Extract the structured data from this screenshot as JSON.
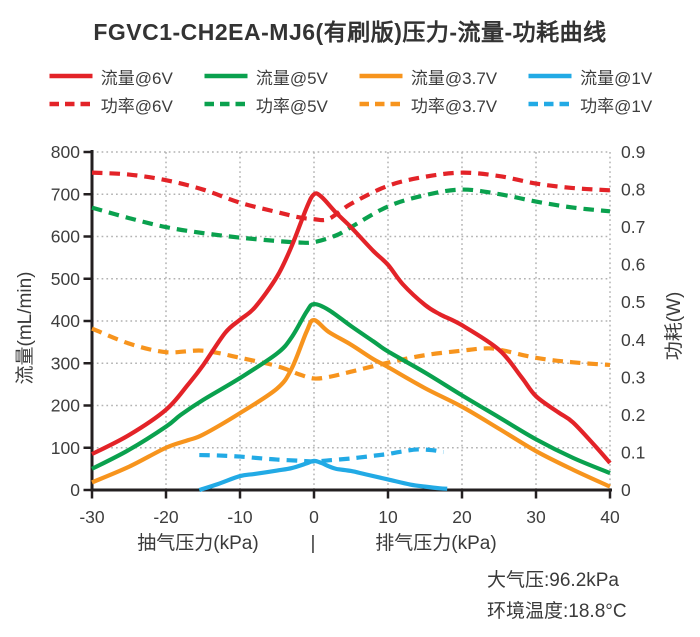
{
  "chart_data": {
    "type": "line",
    "title": "FGVC1-CH2EA-MJ6(有刷版)压力-流量-功耗曲线",
    "x_axis": {
      "label_left": "抽气压力(kPa)",
      "separator": "|",
      "label_right": "排气压力(kPa)",
      "min": -30,
      "max": 40,
      "ticks": [
        -30,
        -20,
        -10,
        0,
        10,
        20,
        30,
        40
      ]
    },
    "y_left": {
      "label": "流量(mL/min)",
      "min": 0,
      "max": 800,
      "ticks": [
        0,
        100,
        200,
        300,
        400,
        500,
        600,
        700,
        800
      ]
    },
    "y_right": {
      "label": "功耗(W)",
      "min": 0,
      "max": 0.9,
      "ticks": [
        0,
        0.1,
        0.2,
        0.3,
        0.4,
        0.5,
        0.6,
        0.7,
        0.8,
        0.9
      ]
    },
    "grid": "dotted",
    "legend_position": "top",
    "colors": {
      "v6": "#e32328",
      "v5": "#0aa14e",
      "v37": "#f7941d",
      "v1": "#22aae5"
    },
    "series": [
      {
        "key": "flow-6v",
        "name": "流量@6V",
        "axis": "left",
        "style": "solid",
        "color": "#e32328",
        "points": [
          [
            -30,
            85
          ],
          [
            -25,
            130
          ],
          [
            -20,
            190
          ],
          [
            -17,
            250
          ],
          [
            -15,
            295
          ],
          [
            -12,
            372
          ],
          [
            -10,
            403
          ],
          [
            -8,
            432
          ],
          [
            -5,
            505
          ],
          [
            -3,
            578
          ],
          [
            -1,
            668
          ],
          [
            0,
            700
          ],
          [
            1,
            694
          ],
          [
            3,
            656
          ],
          [
            5,
            622
          ],
          [
            8,
            566
          ],
          [
            10,
            533
          ],
          [
            12,
            487
          ],
          [
            15,
            438
          ],
          [
            17,
            416
          ],
          [
            20,
            390
          ],
          [
            25,
            332
          ],
          [
            28,
            268
          ],
          [
            30,
            222
          ],
          [
            33,
            184
          ],
          [
            35,
            160
          ],
          [
            38,
            104
          ],
          [
            40,
            64
          ]
        ]
      },
      {
        "key": "flow-5v",
        "name": "流量@5V",
        "axis": "left",
        "style": "solid",
        "color": "#0aa14e",
        "points": [
          [
            -30,
            50
          ],
          [
            -25,
            95
          ],
          [
            -20,
            150
          ],
          [
            -18,
            178
          ],
          [
            -15,
            213
          ],
          [
            -10,
            265
          ],
          [
            -5,
            323
          ],
          [
            -3,
            362
          ],
          [
            -1,
            422
          ],
          [
            0,
            440
          ],
          [
            2,
            426
          ],
          [
            5,
            388
          ],
          [
            8,
            352
          ],
          [
            10,
            328
          ],
          [
            15,
            278
          ],
          [
            20,
            224
          ],
          [
            25,
            172
          ],
          [
            30,
            120
          ],
          [
            35,
            76
          ],
          [
            40,
            40
          ]
        ]
      },
      {
        "key": "flow-3.7v",
        "name": "流量@3.7V",
        "axis": "left",
        "style": "solid",
        "color": "#f7941d",
        "points": [
          [
            -30,
            18
          ],
          [
            -25,
            55
          ],
          [
            -20,
            100
          ],
          [
            -17,
            118
          ],
          [
            -15,
            131
          ],
          [
            -10,
            182
          ],
          [
            -5,
            240
          ],
          [
            -3,
            288
          ],
          [
            -1,
            375
          ],
          [
            0,
            402
          ],
          [
            2,
            374
          ],
          [
            5,
            344
          ],
          [
            8,
            310
          ],
          [
            10,
            291
          ],
          [
            15,
            241
          ],
          [
            20,
            197
          ],
          [
            25,
            145
          ],
          [
            30,
            92
          ],
          [
            35,
            48
          ],
          [
            40,
            8
          ]
        ]
      },
      {
        "key": "flow-1v",
        "name": "流量@1V",
        "axis": "left",
        "style": "solid",
        "color": "#22aae5",
        "points": [
          [
            -15.5,
            0
          ],
          [
            -13,
            14
          ],
          [
            -10,
            33
          ],
          [
            -8,
            38
          ],
          [
            -5,
            46
          ],
          [
            -3,
            52
          ],
          [
            -1,
            63
          ],
          [
            0,
            69
          ],
          [
            1,
            64
          ],
          [
            2,
            56
          ],
          [
            3,
            50
          ],
          [
            5,
            45
          ],
          [
            7,
            37
          ],
          [
            10,
            25
          ],
          [
            13,
            13
          ],
          [
            15,
            8
          ],
          [
            17,
            4
          ],
          [
            18,
            3
          ]
        ]
      },
      {
        "key": "power-6v",
        "name": "功率@6V",
        "axis": "right",
        "style": "dashed",
        "color": "#e32328",
        "points": [
          [
            -30,
            0.845
          ],
          [
            -25,
            0.84
          ],
          [
            -20,
            0.825
          ],
          [
            -15,
            0.8
          ],
          [
            -10,
            0.765
          ],
          [
            -5,
            0.74
          ],
          [
            -2,
            0.726
          ],
          [
            0,
            0.721
          ],
          [
            2,
            0.722
          ],
          [
            5,
            0.762
          ],
          [
            10,
            0.81
          ],
          [
            15,
            0.834
          ],
          [
            20,
            0.845
          ],
          [
            25,
            0.836
          ],
          [
            30,
            0.816
          ],
          [
            35,
            0.804
          ],
          [
            40,
            0.798
          ]
        ]
      },
      {
        "key": "power-5v",
        "name": "功率@5V",
        "axis": "right",
        "style": "dashed",
        "color": "#0aa14e",
        "points": [
          [
            -30,
            0.752
          ],
          [
            -25,
            0.724
          ],
          [
            -20,
            0.7
          ],
          [
            -15,
            0.684
          ],
          [
            -10,
            0.672
          ],
          [
            -5,
            0.663
          ],
          [
            -2,
            0.659
          ],
          [
            0,
            0.66
          ],
          [
            3,
            0.678
          ],
          [
            5,
            0.7
          ],
          [
            10,
            0.755
          ],
          [
            15,
            0.785
          ],
          [
            20,
            0.8
          ],
          [
            25,
            0.788
          ],
          [
            30,
            0.768
          ],
          [
            35,
            0.752
          ],
          [
            40,
            0.742
          ]
        ]
      },
      {
        "key": "power-3.7v",
        "name": "功率@3.7V",
        "axis": "right",
        "style": "dashed",
        "color": "#f7941d",
        "points": [
          [
            -30,
            0.43
          ],
          [
            -25,
            0.39
          ],
          [
            -20,
            0.367
          ],
          [
            -15,
            0.371
          ],
          [
            -10,
            0.352
          ],
          [
            -5,
            0.33
          ],
          [
            -2,
            0.308
          ],
          [
            0,
            0.297
          ],
          [
            2,
            0.301
          ],
          [
            5,
            0.315
          ],
          [
            10,
            0.339
          ],
          [
            15,
            0.359
          ],
          [
            20,
            0.371
          ],
          [
            23,
            0.377
          ],
          [
            25,
            0.374
          ],
          [
            30,
            0.352
          ],
          [
            35,
            0.34
          ],
          [
            40,
            0.333
          ]
        ]
      },
      {
        "key": "power-1v",
        "name": "功率@1V",
        "axis": "right",
        "style": "dashed",
        "color": "#22aae5",
        "points": [
          [
            -15.5,
            0.093
          ],
          [
            -13,
            0.092
          ],
          [
            -10,
            0.089
          ],
          [
            -7,
            0.084
          ],
          [
            -5,
            0.081
          ],
          [
            -2,
            0.078
          ],
          [
            0,
            0.076
          ],
          [
            2,
            0.079
          ],
          [
            5,
            0.084
          ],
          [
            8,
            0.091
          ],
          [
            10,
            0.096
          ],
          [
            12,
            0.103
          ],
          [
            14,
            0.108
          ],
          [
            16,
            0.106
          ],
          [
            17.5,
            0.101
          ]
        ]
      }
    ],
    "conditions": [
      "大气压:96.2kPa",
      "环境温度:18.8°C"
    ]
  }
}
